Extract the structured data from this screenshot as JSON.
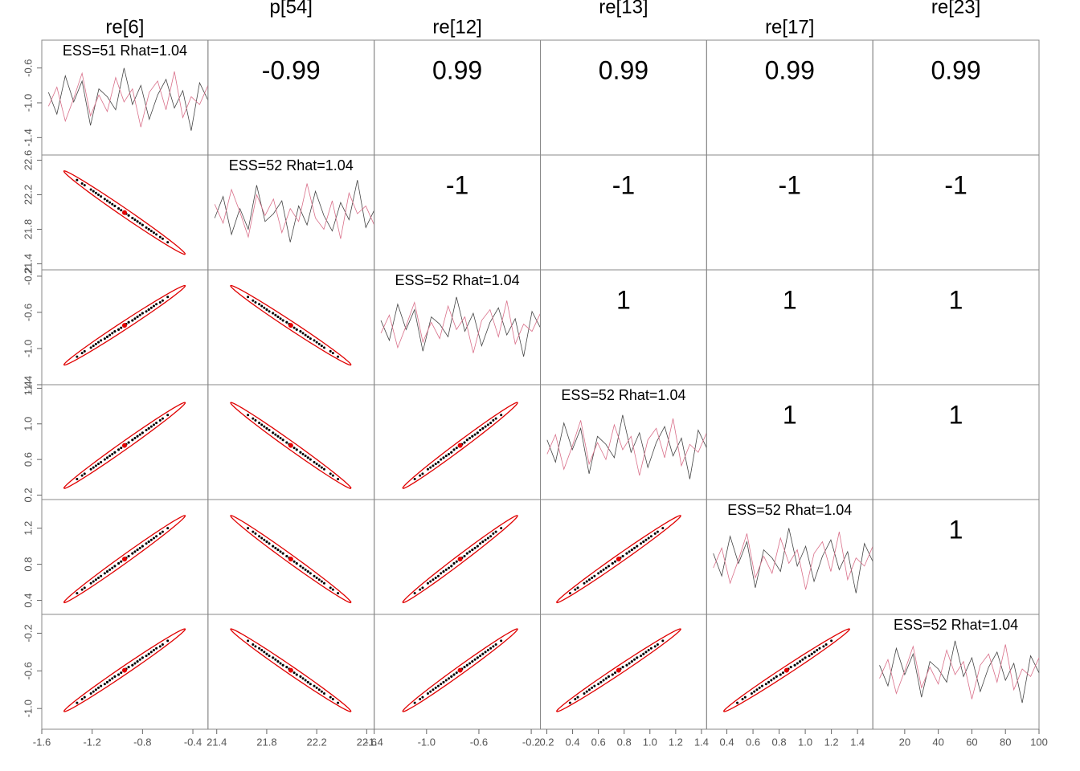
{
  "chart_data": {
    "type": "pairs",
    "variables": [
      {
        "name": "re[6]",
        "diag_label": "ESS=51 Rhat=1.04",
        "lim": [
          -1.6,
          -0.28
        ],
        "xticks": [
          -1.6,
          -1.2,
          -0.8,
          -0.4
        ],
        "yticks": [
          -1.4,
          {
            "value": -1,
            "label": "-1.0"
          },
          -0.6
        ],
        "samples": [
          [
            -0.88,
            -1.13,
            -0.69,
            -0.99,
            -0.75,
            -1.26,
            -0.84,
            -0.93,
            -1.08,
            -0.6,
            -1.02,
            -0.8,
            -1.19,
            -0.91,
            -0.73,
            -1.06,
            -0.86,
            -1.32,
            -0.77,
            -0.97
          ],
          [
            -1.04,
            -0.82,
            -1.21,
            -0.95,
            -0.66,
            -1.15,
            -0.91,
            -1.1,
            -0.71,
            -0.99,
            -0.84,
            -1.28,
            -0.88,
            -0.75,
            -1.08,
            -0.64,
            -1.17,
            -0.93,
            -1.02,
            -0.8
          ]
        ]
      },
      {
        "name": "p[54]",
        "diag_label": "ESS=52 Rhat=1.04",
        "lim": [
          21.33,
          22.66
        ],
        "xticks": [
          21.4,
          21.8,
          22.2,
          22.6
        ],
        "yticks": [
          21.4,
          21.8,
          22.2,
          22.6
        ],
        "samples": [
          [
            21.93,
            22.18,
            21.74,
            22.04,
            21.8,
            22.31,
            21.89,
            21.98,
            22.13,
            21.65,
            22.07,
            21.85,
            22.24,
            21.96,
            21.78,
            22.11,
            21.91,
            22.37,
            21.82,
            22.02
          ],
          [
            22.09,
            21.87,
            22.26,
            22.0,
            21.71,
            22.2,
            21.96,
            22.15,
            21.76,
            22.04,
            21.89,
            22.33,
            21.93,
            21.8,
            22.13,
            21.69,
            22.22,
            21.98,
            22.07,
            21.85
          ]
        ]
      },
      {
        "name": "re[12]",
        "diag_label": "ESS=52 Rhat=1.04",
        "lim": [
          -1.4,
          -0.13
        ],
        "xticks": [
          -1.4,
          {
            "value": -1,
            "label": "-1.0"
          },
          -0.6,
          -0.2
        ],
        "yticks": [
          -1.4,
          {
            "value": -1,
            "label": "-1.0"
          },
          -0.6,
          -0.2
        ],
        "samples": [
          [
            -0.69,
            -0.91,
            -0.51,
            -0.79,
            -0.57,
            -1.03,
            -0.65,
            -0.73,
            -0.87,
            -0.43,
            -0.81,
            -0.61,
            -0.97,
            -0.71,
            -0.55,
            -0.85,
            -0.67,
            -1.09,
            -0.59,
            -0.77
          ],
          [
            -0.83,
            -0.63,
            -0.99,
            -0.75,
            -0.49,
            -0.93,
            -0.71,
            -0.89,
            -0.53,
            -0.79,
            -0.65,
            -1.05,
            -0.69,
            -0.57,
            -0.87,
            -0.47,
            -0.95,
            -0.73,
            -0.81,
            -0.61
          ]
        ]
      },
      {
        "name": "re[13]",
        "diag_label": "ESS=52 Rhat=1.04",
        "lim": [
          0.15,
          1.44
        ],
        "xticks": [
          0.2,
          0.4,
          0.6,
          0.8,
          {
            "value": 1,
            "label": "1.0"
          },
          1.2,
          1.4
        ],
        "yticks": [
          0.2,
          0.6,
          {
            "value": 1,
            "label": "1.0"
          },
          1.4
        ],
        "samples": [
          [
            0.82,
            0.57,
            1.01,
            0.71,
            0.95,
            0.44,
            0.86,
            0.77,
            0.62,
            1.1,
            0.68,
            0.9,
            0.51,
            0.79,
            0.97,
            0.64,
            0.84,
            0.38,
            0.93,
            0.73
          ],
          [
            0.66,
            0.88,
            0.49,
            0.75,
            1.04,
            0.55,
            0.79,
            0.6,
            0.99,
            0.71,
            0.86,
            0.42,
            0.82,
            0.95,
            0.62,
            1.06,
            0.53,
            0.77,
            0.68,
            0.9
          ]
        ]
      },
      {
        "name": "re[17]",
        "diag_label": "ESS=52 Rhat=1.04",
        "lim": [
          0.245,
          1.517
        ],
        "xticks": [
          0.4,
          0.6,
          0.8,
          {
            "value": 1,
            "label": "1.0"
          },
          1.2,
          1.4
        ],
        "yticks": [
          0.4,
          0.8,
          1.2
        ],
        "samples": [
          [
            0.92,
            0.67,
            1.11,
            0.81,
            1.05,
            0.54,
            0.96,
            0.87,
            0.72,
            1.2,
            0.78,
            1.0,
            0.61,
            0.89,
            1.07,
            0.74,
            0.94,
            0.48,
            1.03,
            0.83
          ],
          [
            0.76,
            0.98,
            0.59,
            0.85,
            1.14,
            0.65,
            0.89,
            0.7,
            1.09,
            0.81,
            0.96,
            0.52,
            0.92,
            1.05,
            0.72,
            1.16,
            0.63,
            0.87,
            0.78,
            1.0
          ]
        ]
      },
      {
        "name": "re[23]",
        "diag_label": "ESS=52 Rhat=1.04",
        "lim": [
          -1.22,
          0.0
        ],
        "xticks": [],
        "yticks": [
          {
            "value": -1,
            "label": "-1.0"
          },
          -0.6,
          -0.2
        ],
        "samples": [
          [
            -0.54,
            -0.76,
            -0.36,
            -0.64,
            -0.42,
            -0.88,
            -0.5,
            -0.58,
            -0.72,
            -0.28,
            -0.66,
            -0.46,
            -0.82,
            -0.56,
            -0.4,
            -0.7,
            -0.52,
            -0.94,
            -0.44,
            -0.62
          ],
          [
            -0.68,
            -0.48,
            -0.84,
            -0.6,
            -0.34,
            -0.78,
            -0.56,
            -0.74,
            -0.38,
            -0.64,
            -0.5,
            -0.9,
            -0.54,
            -0.42,
            -0.72,
            -0.32,
            -0.8,
            -0.58,
            -0.66,
            -0.46
          ]
        ]
      }
    ],
    "trace_x": [
      5,
      10,
      15,
      20,
      25,
      30,
      35,
      40,
      45,
      50,
      55,
      60,
      65,
      70,
      75,
      80,
      85,
      90,
      95,
      100
    ],
    "trace_xlim": [
      1,
      100
    ],
    "trace_xticks": [
      20,
      40,
      60,
      80,
      100
    ],
    "chain_colors": [
      "#444444",
      "#d9708a"
    ],
    "point_color": "#000000",
    "ellipse_color": "#e00000",
    "correlations": [
      [
        -0.99,
        0.99,
        0.99,
        0.99,
        0.99
      ],
      [
        -1,
        -1,
        -1,
        -1
      ],
      [
        1,
        1,
        1
      ],
      [
        1,
        1
      ],
      [
        1
      ]
    ]
  }
}
